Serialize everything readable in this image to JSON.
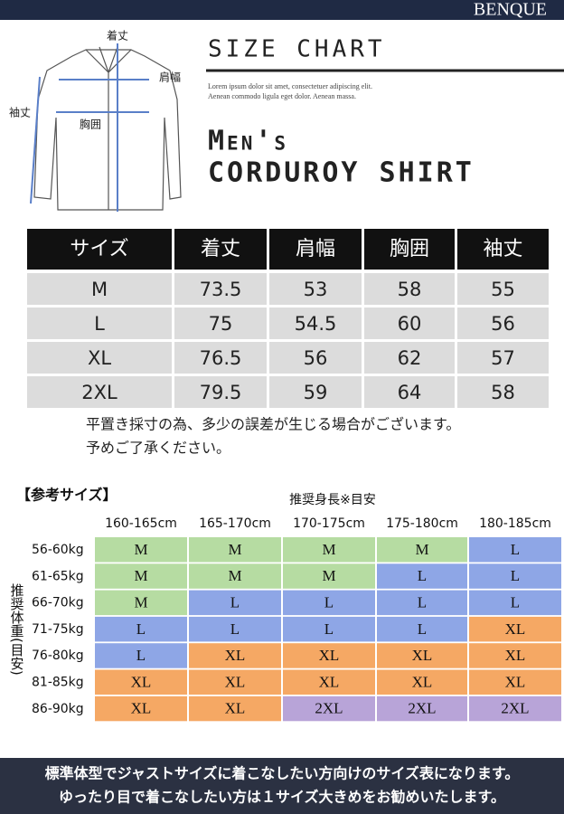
{
  "header": {
    "brand": "BENQUE"
  },
  "diagram": {
    "labels": [
      "着丈",
      "肩幅",
      "袖丈",
      "胸囲"
    ]
  },
  "title": {
    "heading": "SIZE CHART",
    "lorem": [
      "Lorem ipsum dolor sit amet, consectetuer adipiscing elit.",
      "Aenean commodo ligula eget dolor. Aenean massa."
    ],
    "product": [
      "Men's",
      "CORDUROY SHIRT"
    ]
  },
  "size_table": {
    "columns": [
      "サイズ",
      "着丈",
      "肩幅",
      "胸囲",
      "袖丈"
    ],
    "rows": [
      [
        "M",
        "73.5",
        "53",
        "58",
        "55"
      ],
      [
        "L",
        "75",
        "54.5",
        "60",
        "56"
      ],
      [
        "XL",
        "76.5",
        "56",
        "62",
        "57"
      ],
      [
        "2XL",
        "79.5",
        "59",
        "64",
        "58"
      ]
    ]
  },
  "notes": [
    "平置き採寸の為、多少の誤差が生じる場合がございます。",
    "予めご了承ください。"
  ],
  "reference": {
    "title": "【参考サイズ】",
    "height_label": "推奨身長※目安",
    "weight_label": "推奨体重(目安)",
    "heights": [
      "160-165cm",
      "165-170cm",
      "170-175cm",
      "175-180cm",
      "180-185cm"
    ],
    "weights": [
      "56-60kg",
      "61-65kg",
      "66-70kg",
      "71-75kg",
      "76-80kg",
      "81-85kg",
      "86-90kg"
    ],
    "grid": [
      [
        "M",
        "M",
        "M",
        "M",
        "L"
      ],
      [
        "M",
        "M",
        "M",
        "L",
        "L"
      ],
      [
        "M",
        "L",
        "L",
        "L",
        "L"
      ],
      [
        "L",
        "L",
        "L",
        "L",
        "XL"
      ],
      [
        "L",
        "XL",
        "XL",
        "XL",
        "XL"
      ],
      [
        "XL",
        "XL",
        "XL",
        "XL",
        "XL"
      ],
      [
        "XL",
        "XL",
        "2XL",
        "2XL",
        "2XL"
      ]
    ],
    "colors": {
      "M": "#b6dca2",
      "L": "#8ea6e6",
      "XL": "#f5a864",
      "2XL": "#b8a4d8"
    }
  },
  "footer": [
    "標準体型でジャストサイズに着こなしたい方向けのサイズ表になります。",
    "ゆったり目で着こなしたい方は１サイズ大きめをお勧めいたします。"
  ]
}
